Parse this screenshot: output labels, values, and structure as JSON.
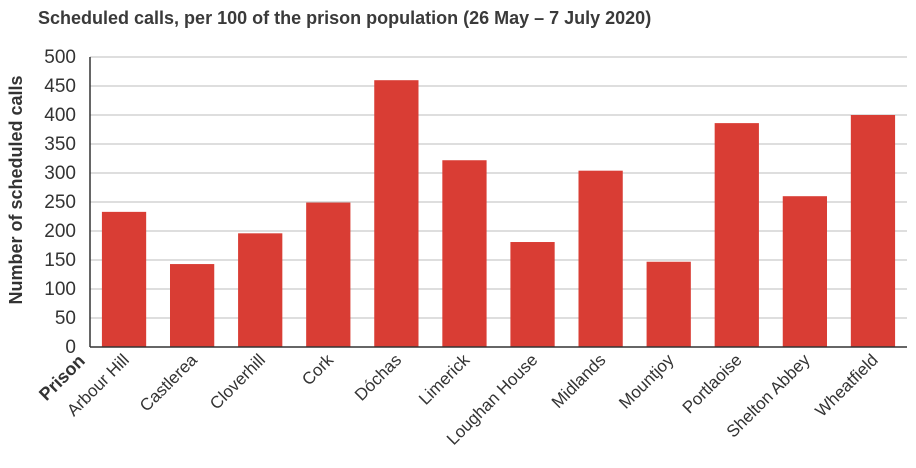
{
  "chart_data": {
    "type": "bar",
    "title": "Scheduled calls, per 100 of the prison population (26 May – 7 July 2020)",
    "xlabel": "Prison",
    "ylabel": "Number of scheduled calls",
    "ylim": [
      0,
      500
    ],
    "yticks": [
      0,
      50,
      100,
      150,
      200,
      250,
      300,
      350,
      400,
      450,
      500
    ],
    "grid": true,
    "bar_color": "#d93d34",
    "categories": [
      "Arbour Hill",
      "Castlerea",
      "Cloverhill",
      "Cork",
      "Dóchas",
      "Limerick",
      "Loughan House",
      "Midlands",
      "Mountjoy",
      "Portlaoise",
      "Shelton Abbey",
      "Wheatfield"
    ],
    "values": [
      233,
      143,
      196,
      249,
      460,
      322,
      181,
      304,
      147,
      386,
      260,
      400
    ]
  }
}
